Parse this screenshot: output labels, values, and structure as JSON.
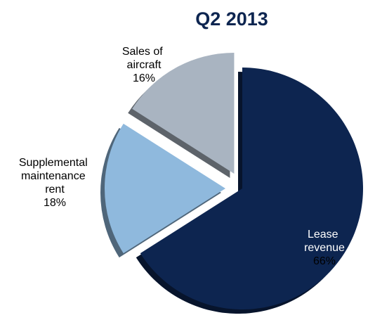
{
  "chart_data": {
    "type": "pie",
    "title": "Q2 2013",
    "categories": [
      "Lease revenue",
      "Supplemental maintenance rent",
      "Sales of aircraft"
    ],
    "values": [
      66,
      18,
      16
    ],
    "value_labels": [
      "66%",
      "18%",
      "16%"
    ],
    "colors": [
      "#0d2550",
      "#8fb9dd",
      "#a9b4c1"
    ]
  }
}
